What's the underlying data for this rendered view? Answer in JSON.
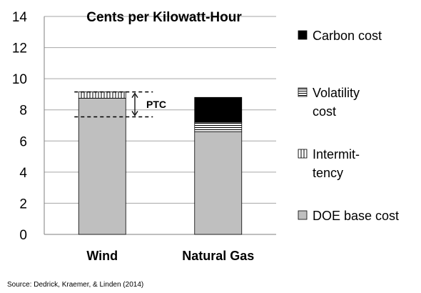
{
  "chart_data": {
    "type": "bar",
    "stacked": true,
    "title": "Cents per Kilowatt-Hour",
    "categories": [
      "Wind",
      "Natural Gas"
    ],
    "ylim": [
      0,
      14
    ],
    "yticks": [
      "0",
      "2",
      "4",
      "6",
      "8",
      "10",
      "12",
      "14"
    ],
    "grid": true,
    "legend_position": "right",
    "series": [
      {
        "name": "DOE base cost",
        "values": [
          8.75,
          6.6
        ],
        "color": "#bfbfbf",
        "pattern": "solid"
      },
      {
        "name": "Intermit-|tency",
        "values": [
          0.4,
          0.0
        ],
        "color": "#ffffff",
        "pattern": "vertical"
      },
      {
        "name": "Volatility|cost",
        "values": [
          0.0,
          0.6
        ],
        "color": "#ffffff",
        "pattern": "horizontal"
      },
      {
        "name": "Carbon cost",
        "values": [
          0.0,
          1.6
        ],
        "color": "#000000",
        "pattern": "solid"
      }
    ],
    "legend_order": [
      "Carbon cost",
      "Volatility|cost",
      "Intermit-|tency",
      "DOE base cost"
    ],
    "annotation": {
      "label": "PTC",
      "upper": 9.15,
      "lower": 7.55
    },
    "source": "Source: Dedrick, Kraemer, & Linden (2014)"
  }
}
